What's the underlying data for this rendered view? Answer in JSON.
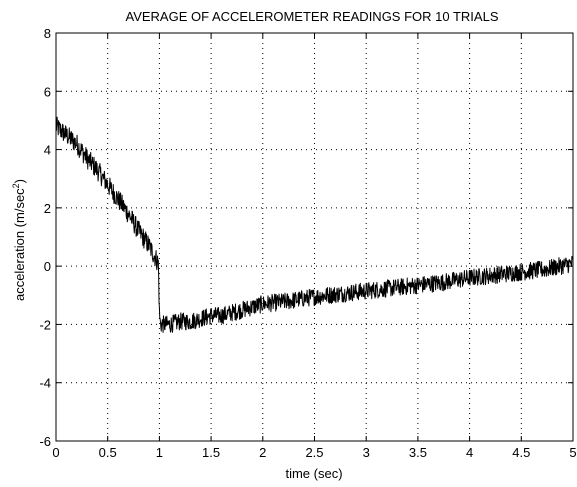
{
  "chart_data": {
    "type": "line",
    "title": "AVERAGE OF ACCELEROMETER READINGS FOR 10 TRIALS",
    "xlabel": "time (sec)",
    "ylabel_text": "acceleration (m/sec",
    "ylabel_sup": "2",
    "ylabel_close": ")",
    "xlim": [
      0,
      5
    ],
    "ylim": [
      -6,
      8
    ],
    "xticks": [
      0,
      0.5,
      1,
      1.5,
      2,
      2.5,
      3,
      3.5,
      4,
      4.5,
      5
    ],
    "xtick_labels": [
      "0",
      "0.5",
      "1",
      "1.5",
      "2",
      "2.5",
      "3",
      "3.5",
      "4",
      "4.5",
      "5"
    ],
    "yticks": [
      -6,
      -4,
      -2,
      0,
      2,
      4,
      6,
      8
    ],
    "ytick_labels": [
      "-6",
      "-4",
      "-2",
      "0",
      "2",
      "4",
      "6",
      "8"
    ],
    "grid": true,
    "line_color": "#000000",
    "series": [
      {
        "x": [
          0,
          0.1,
          0.2,
          0.3,
          0.4,
          0.5,
          0.6,
          0.7,
          0.8,
          0.9,
          0.99,
          1.0,
          1.01,
          1.1,
          1.2,
          1.3,
          1.4,
          1.5,
          1.6,
          1.7,
          1.8,
          1.9,
          2.0,
          2.25,
          2.5,
          2.75,
          3.0,
          3.25,
          3.5,
          3.75,
          4.0,
          4.25,
          4.5,
          4.75,
          5.0
        ],
        "y": [
          4.8,
          4.5,
          4.2,
          3.7,
          3.3,
          2.8,
          2.3,
          1.8,
          1.2,
          0.7,
          0.1,
          -1.6,
          -2.0,
          -2.0,
          -1.9,
          -1.9,
          -1.8,
          -1.7,
          -1.7,
          -1.6,
          -1.5,
          -1.4,
          -1.3,
          -1.2,
          -1.05,
          -0.95,
          -0.85,
          -0.75,
          -0.65,
          -0.55,
          -0.4,
          -0.3,
          -0.2,
          -0.1,
          0.1
        ],
        "noise_amplitude": [
          0.35,
          0.35,
          0.35,
          0.35,
          0.35,
          0.35,
          0.35,
          0.35,
          0.35,
          0.35,
          0.35,
          0.3,
          0.3,
          0.3,
          0.3,
          0.3,
          0.3,
          0.3,
          0.3,
          0.3,
          0.3,
          0.3,
          0.3,
          0.3,
          0.3,
          0.3,
          0.3,
          0.3,
          0.3,
          0.3,
          0.3,
          0.3,
          0.3,
          0.3,
          0.3
        ]
      }
    ]
  }
}
